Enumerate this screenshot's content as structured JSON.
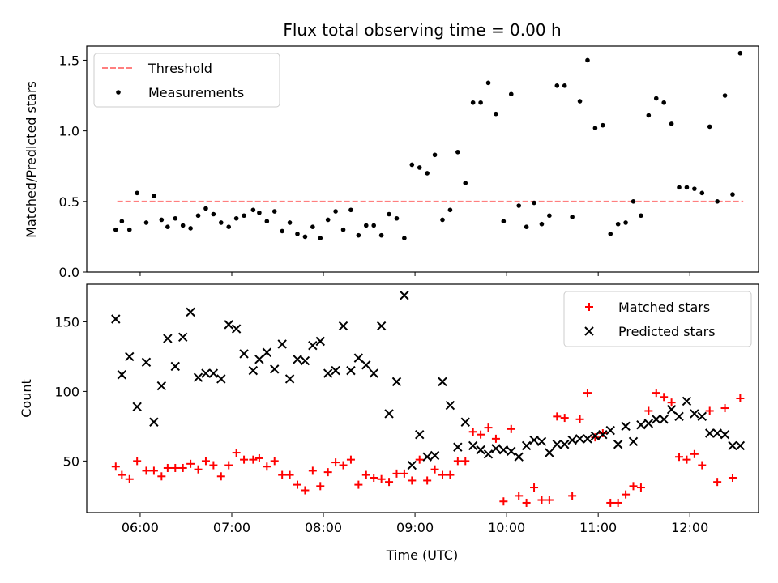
{
  "title": "Flux total observing time = 0.00 h",
  "colors": {
    "threshold": "#ff7f7f",
    "measurements": "#000000",
    "matched": "#ff0000",
    "predicted": "#000000"
  },
  "chart_data": [
    {
      "type": "scatter",
      "ylabel": "Matched/Predicted stars",
      "ylim": [
        0,
        1.6
      ],
      "yticks": [
        0.0,
        0.5,
        1.0,
        1.5
      ],
      "ytick_labels": [
        "0.0",
        "0.5",
        "1.0",
        "1.5"
      ],
      "xlim": [
        "05:25",
        "12:45"
      ],
      "legend_position": "top-left",
      "threshold": {
        "name": "Threshold",
        "y": 0.5,
        "x_range": [
          "05:45",
          "12:35"
        ],
        "style": "dashed"
      },
      "series": [
        {
          "name": "Measurements",
          "marker": "dot",
          "x": [
            "05:44",
            "05:48",
            "05:53",
            "05:58",
            "06:04",
            "06:09",
            "06:14",
            "06:18",
            "06:23",
            "06:28",
            "06:33",
            "06:38",
            "06:43",
            "06:48",
            "06:53",
            "06:58",
            "07:03",
            "07:08",
            "07:14",
            "07:18",
            "07:23",
            "07:28",
            "07:33",
            "07:38",
            "07:43",
            "07:48",
            "07:53",
            "07:58",
            "08:03",
            "08:08",
            "08:13",
            "08:18",
            "08:23",
            "08:28",
            "08:33",
            "08:38",
            "08:43",
            "08:48",
            "08:53",
            "08:58",
            "09:03",
            "09:08",
            "09:13",
            "09:18",
            "09:23",
            "09:28",
            "09:33",
            "09:38",
            "09:43",
            "09:48",
            "09:53",
            "09:58",
            "10:03",
            "10:08",
            "10:13",
            "10:18",
            "10:23",
            "10:28",
            "10:33",
            "10:38",
            "10:43",
            "10:48",
            "10:53",
            "10:58",
            "11:03",
            "11:08",
            "11:13",
            "11:18",
            "11:23",
            "11:28",
            "11:33",
            "11:38",
            "11:43",
            "11:48",
            "11:53",
            "11:58",
            "12:03",
            "12:08",
            "12:13",
            "12:18",
            "12:23",
            "12:28",
            "12:33"
          ],
          "y": [
            0.3,
            0.36,
            0.3,
            0.56,
            0.35,
            0.54,
            0.37,
            0.32,
            0.38,
            0.33,
            0.31,
            0.4,
            0.45,
            0.41,
            0.35,
            0.32,
            0.38,
            0.4,
            0.44,
            0.42,
            0.36,
            0.43,
            0.29,
            0.35,
            0.27,
            0.25,
            0.32,
            0.24,
            0.37,
            0.43,
            0.3,
            0.44,
            0.26,
            0.33,
            0.33,
            0.26,
            0.41,
            0.38,
            0.24,
            0.76,
            0.74,
            0.7,
            0.83,
            0.37,
            0.44,
            0.85,
            0.63,
            1.2,
            1.2,
            1.34,
            1.12,
            0.36,
            1.26,
            0.47,
            0.32,
            0.49,
            0.34,
            0.4,
            1.32,
            1.32,
            0.39,
            1.21,
            1.5,
            1.02,
            1.04,
            0.27,
            0.34,
            0.35,
            0.5,
            0.4,
            1.11,
            1.23,
            1.2,
            1.05,
            0.6,
            0.6,
            0.59,
            0.56,
            1.03,
            0.5,
            1.25,
            0.55,
            1.55
          ]
        }
      ]
    },
    {
      "type": "scatter",
      "xlabel": "Time (UTC)",
      "ylabel": "Count",
      "ylim": [
        13,
        177
      ],
      "yticks": [
        50,
        100,
        150
      ],
      "ytick_labels": [
        "50",
        "100",
        "150"
      ],
      "xlim": [
        "05:25",
        "12:45"
      ],
      "xticks": [
        "06:00",
        "07:00",
        "08:00",
        "09:00",
        "10:00",
        "11:00",
        "12:00"
      ],
      "xtick_labels": [
        "06:00",
        "07:00",
        "08:00",
        "09:00",
        "10:00",
        "11:00",
        "12:00"
      ],
      "legend_position": "top-right",
      "series": [
        {
          "name": "Matched stars",
          "marker": "plus",
          "x": [
            "05:44",
            "05:48",
            "05:53",
            "05:58",
            "06:04",
            "06:09",
            "06:14",
            "06:18",
            "06:23",
            "06:28",
            "06:33",
            "06:38",
            "06:43",
            "06:48",
            "06:53",
            "06:58",
            "07:03",
            "07:08",
            "07:14",
            "07:18",
            "07:23",
            "07:28",
            "07:33",
            "07:38",
            "07:43",
            "07:48",
            "07:53",
            "07:58",
            "08:03",
            "08:08",
            "08:13",
            "08:18",
            "08:23",
            "08:28",
            "08:33",
            "08:38",
            "08:43",
            "08:48",
            "08:53",
            "08:58",
            "09:03",
            "09:08",
            "09:13",
            "09:18",
            "09:23",
            "09:28",
            "09:33",
            "09:38",
            "09:43",
            "09:48",
            "09:53",
            "09:58",
            "10:03",
            "10:08",
            "10:13",
            "10:18",
            "10:23",
            "10:28",
            "10:33",
            "10:38",
            "10:43",
            "10:48",
            "10:53",
            "10:58",
            "11:03",
            "11:08",
            "11:13",
            "11:18",
            "11:23",
            "11:28",
            "11:33",
            "11:38",
            "11:43",
            "11:48",
            "11:53",
            "11:58",
            "12:03",
            "12:08",
            "12:13",
            "12:18",
            "12:23",
            "12:28",
            "12:33"
          ],
          "y": [
            46,
            40,
            37,
            50,
            43,
            43,
            39,
            45,
            45,
            45,
            48,
            44,
            50,
            47,
            39,
            47,
            56,
            51,
            51,
            52,
            46,
            50,
            40,
            40,
            33,
            29,
            43,
            32,
            42,
            49,
            47,
            51,
            33,
            40,
            38,
            37,
            35,
            41,
            41,
            36,
            51,
            36,
            44,
            40,
            40,
            50,
            50,
            71,
            69,
            74,
            66,
            21,
            73,
            25,
            20,
            31,
            22,
            22,
            82,
            81,
            25,
            80,
            99,
            67,
            70,
            20,
            20,
            26,
            32,
            31,
            86,
            99,
            96,
            92,
            53,
            51,
            55,
            47,
            86,
            35,
            88,
            38,
            95
          ]
        },
        {
          "name": "Predicted stars",
          "marker": "x",
          "x": [
            "05:44",
            "05:48",
            "05:53",
            "05:58",
            "06:04",
            "06:09",
            "06:14",
            "06:18",
            "06:23",
            "06:28",
            "06:33",
            "06:38",
            "06:43",
            "06:48",
            "06:53",
            "06:58",
            "07:03",
            "07:08",
            "07:14",
            "07:18",
            "07:23",
            "07:28",
            "07:33",
            "07:38",
            "07:43",
            "07:48",
            "07:53",
            "07:58",
            "08:03",
            "08:08",
            "08:13",
            "08:18",
            "08:23",
            "08:28",
            "08:33",
            "08:38",
            "08:43",
            "08:48",
            "08:53",
            "08:58",
            "09:03",
            "09:08",
            "09:13",
            "09:18",
            "09:23",
            "09:28",
            "09:33",
            "09:38",
            "09:43",
            "09:48",
            "09:53",
            "09:58",
            "10:03",
            "10:08",
            "10:13",
            "10:18",
            "10:23",
            "10:28",
            "10:33",
            "10:38",
            "10:43",
            "10:48",
            "10:53",
            "10:58",
            "11:03",
            "11:08",
            "11:13",
            "11:18",
            "11:23",
            "11:28",
            "11:33",
            "11:38",
            "11:43",
            "11:48",
            "11:53",
            "11:58",
            "12:03",
            "12:08",
            "12:13",
            "12:18",
            "12:23",
            "12:28",
            "12:33"
          ],
          "y": [
            152,
            112,
            125,
            89,
            121,
            78,
            104,
            138,
            118,
            139,
            157,
            110,
            113,
            113,
            109,
            148,
            145,
            127,
            115,
            123,
            128,
            116,
            134,
            109,
            123,
            122,
            133,
            136,
            113,
            115,
            147,
            115,
            124,
            119,
            113,
            147,
            84,
            107,
            169,
            47,
            69,
            53,
            54,
            107,
            90,
            60,
            78,
            61,
            58,
            55,
            59,
            58,
            57,
            53,
            61,
            65,
            64,
            56,
            62,
            62,
            65,
            66,
            66,
            68,
            69,
            72,
            62,
            75,
            64,
            76,
            77,
            80,
            80,
            87,
            82,
            93,
            84,
            82,
            70,
            70,
            69,
            61,
            61
          ]
        }
      ]
    }
  ]
}
